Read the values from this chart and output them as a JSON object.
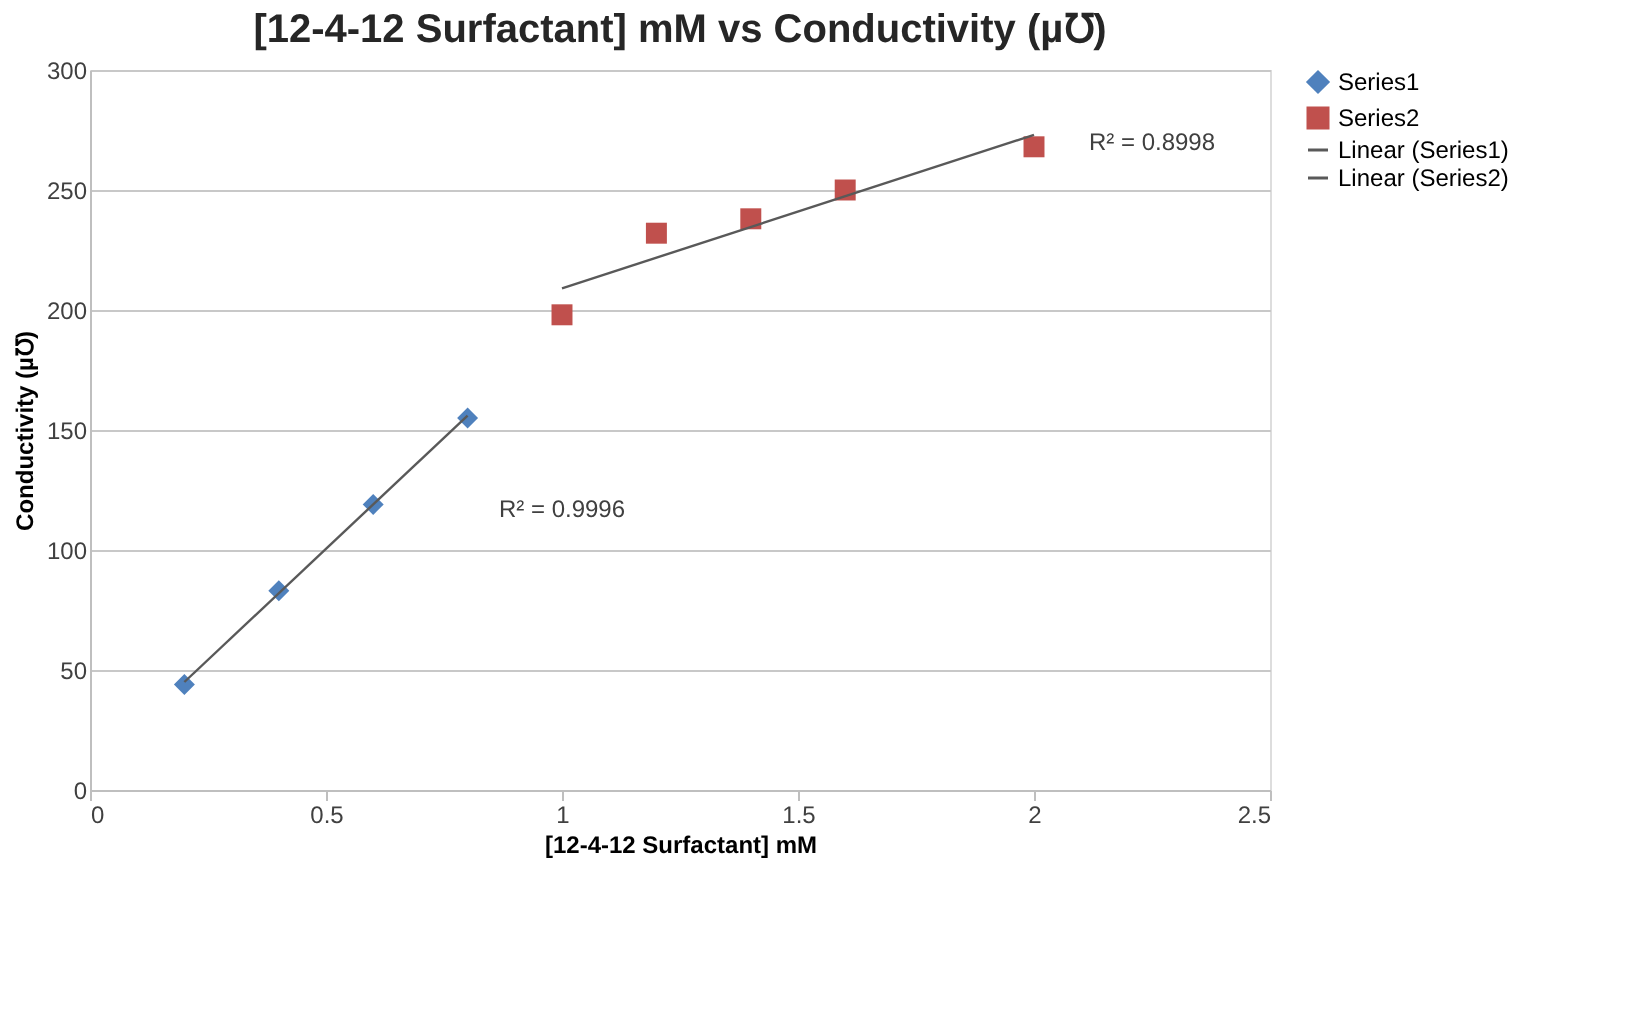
{
  "chart_data": {
    "type": "scatter",
    "title": "[12-4-12 Surfactant] mM vs Conductivity (µ℧)",
    "xlabel": "[12-4-12 Surfactant] mM",
    "ylabel": "Conductivity (µ℧)",
    "series": [
      {
        "name": "Series1",
        "color": "#4f81bd",
        "marker": "diamond",
        "x": [
          0.2,
          0.4,
          0.6,
          0.8
        ],
        "values": [
          44,
          83,
          119,
          155
        ]
      },
      {
        "name": "Series2",
        "color": "#c0504d",
        "marker": "square",
        "x": [
          1,
          1.2,
          1.4,
          1.6,
          2
        ],
        "values": [
          198,
          232,
          238,
          250,
          268
        ]
      },
      {
        "name": "Linear (Series1)",
        "type": "line",
        "color": "#595959",
        "x": [
          0.2,
          0.8
        ],
        "values": [
          45,
          156
        ]
      },
      {
        "name": "Linear (Series2)",
        "type": "line",
        "color": "#595959",
        "x": [
          1,
          2
        ],
        "values": [
          209,
          273
        ]
      }
    ],
    "annotations": [
      "R² = 0.9996",
      "R² = 0.8998"
    ],
    "xlim": [
      0,
      2.5
    ],
    "xticks": [
      0,
      0.5,
      1,
      1.5,
      2,
      2.5
    ],
    "ylim": [
      0,
      300
    ],
    "yticks": [
      0,
      50,
      100,
      150,
      200,
      250,
      300
    ],
    "grid": "y",
    "legend": "right"
  }
}
